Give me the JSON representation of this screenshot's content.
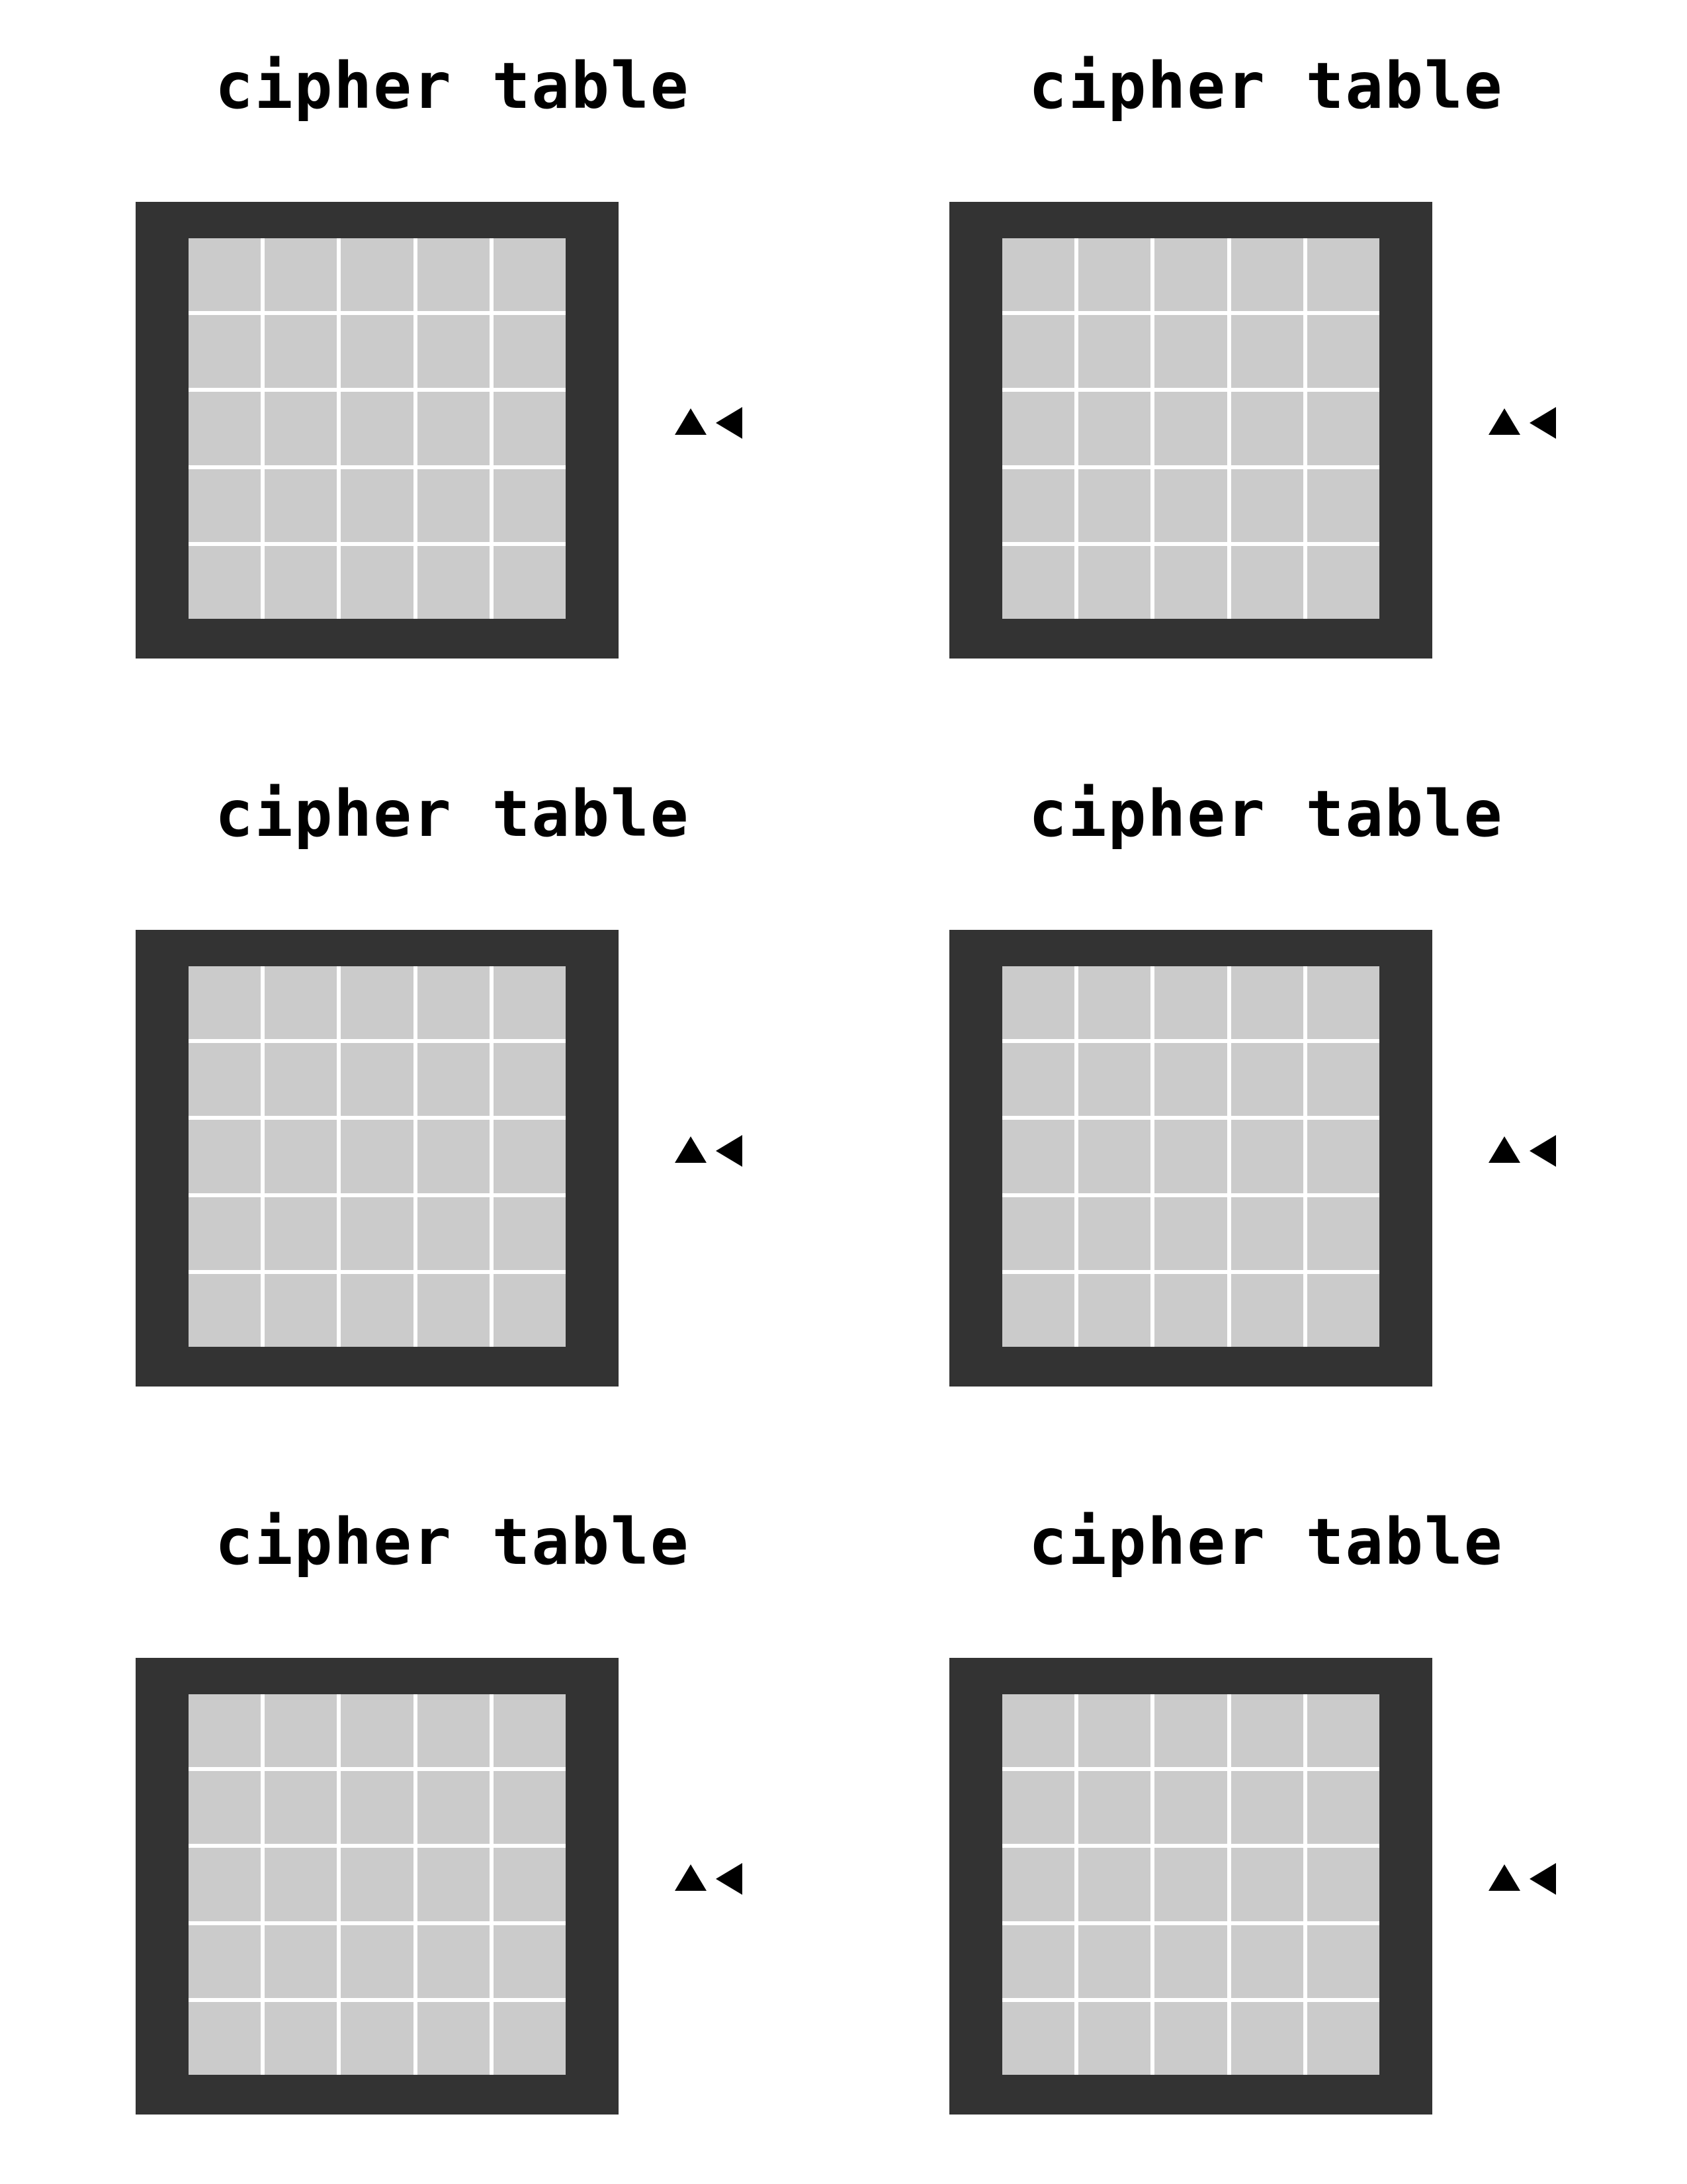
{
  "page": {
    "tables": [
      {
        "title": "cipher table"
      },
      {
        "title": "cipher table"
      },
      {
        "title": "cipher table"
      },
      {
        "title": "cipher table"
      },
      {
        "title": "cipher table"
      },
      {
        "title": "cipher table"
      }
    ]
  },
  "grid": {
    "rows": 5,
    "columns": 5
  },
  "icons": {
    "up": "up-arrow-icon",
    "left": "left-arrow-icon"
  },
  "colors": {
    "frame": "#333333",
    "cell": "#cbcbcb",
    "grid_lines": "#ffffff",
    "text": "#000000"
  }
}
